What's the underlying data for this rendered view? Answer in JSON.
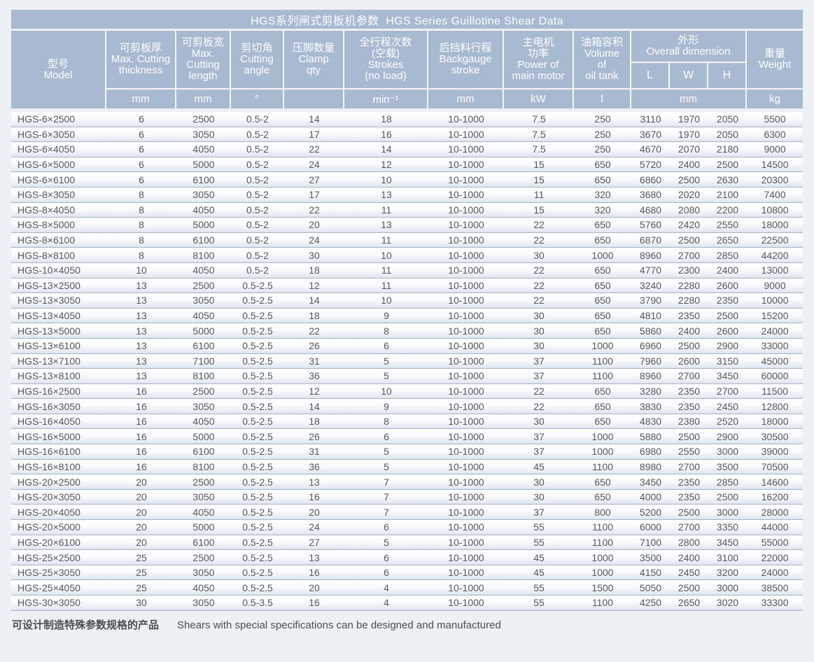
{
  "page": {
    "background": "#edf0f4",
    "accent_blue": "#a8bad1"
  },
  "table": {
    "title": "HGS系列闸式剪板机参数  HGS Series Guillotine Shear Data",
    "header": {
      "model": "型号\nModel",
      "thickness": "可剪板厚\nMax. Cutting\nthickness",
      "length": "可剪板宽\nMax.\nCutting\nlength",
      "angle": "剪切角\nCutting\nangle",
      "clamp": "压脚数量\nClamp\nqty",
      "strokes": "全行程次数\n(空载)\nStrokes\n(no load)",
      "backgauge": "后挡料行程\nBackgauge\nstroke",
      "power": "主电机\n功率\nPower of\nmain motor",
      "volume": "油箱容积\nVolume\nof\noil tank",
      "dimension": "外形\nOverall dimension",
      "dim_l": "L",
      "dim_w": "W",
      "dim_h": "H",
      "weight": "重量\nWeight",
      "units": {
        "thickness": "mm",
        "length": "mm",
        "angle": "°",
        "clamp": "",
        "strokes": "min⁻¹",
        "backgauge": "mm",
        "power": "kW",
        "volume": "l",
        "dimension": "mm",
        "weight": "kg"
      }
    },
    "rows": [
      [
        "HGS-6×2500",
        "6",
        "2500",
        "0.5-2",
        "14",
        "18",
        "10-1000",
        "7.5",
        "250",
        "3110",
        "1970",
        "2050",
        "5500"
      ],
      [
        "HGS-6×3050",
        "6",
        "3050",
        "0.5-2",
        "17",
        "16",
        "10-1000",
        "7.5",
        "250",
        "3670",
        "1970",
        "2050",
        "6300"
      ],
      [
        "HGS-6×4050",
        "6",
        "4050",
        "0.5-2",
        "22",
        "14",
        "10-1000",
        "7.5",
        "250",
        "4670",
        "2070",
        "2180",
        "9000"
      ],
      [
        "HGS-6×5000",
        "6",
        "5000",
        "0.5-2",
        "24",
        "12",
        "10-1000",
        "15",
        "650",
        "5720",
        "2400",
        "2500",
        "14500"
      ],
      [
        "HGS-6×6100",
        "6",
        "6100",
        "0.5-2",
        "27",
        "10",
        "10-1000",
        "15",
        "650",
        "6860",
        "2500",
        "2630",
        "20300"
      ],
      [
        "HGS-8×3050",
        "8",
        "3050",
        "0.5-2",
        "17",
        "13",
        "10-1000",
        "11",
        "320",
        "3680",
        "2020",
        "2100",
        "7400"
      ],
      [
        "HGS-8×4050",
        "8",
        "4050",
        "0.5-2",
        "22",
        "11",
        "10-1000",
        "15",
        "320",
        "4680",
        "2080",
        "2200",
        "10800"
      ],
      [
        "HGS-8×5000",
        "8",
        "5000",
        "0.5-2",
        "20",
        "13",
        "10-1000",
        "22",
        "650",
        "5760",
        "2420",
        "2550",
        "18000"
      ],
      [
        "HGS-8×6100",
        "8",
        "6100",
        "0.5-2",
        "24",
        "11",
        "10-1000",
        "22",
        "650",
        "6870",
        "2500",
        "2650",
        "22500"
      ],
      [
        "HGS-8×8100",
        "8",
        "8100",
        "0.5-2",
        "30",
        "10",
        "10-1000",
        "30",
        "1000",
        "8960",
        "2700",
        "2850",
        "44200"
      ],
      [
        "HGS-10×4050",
        "10",
        "4050",
        "0.5-2",
        "18",
        "11",
        "10-1000",
        "22",
        "650",
        "4770",
        "2300",
        "2400",
        "13000"
      ],
      [
        "HGS-13×2500",
        "13",
        "2500",
        "0.5-2.5",
        "12",
        "11",
        "10-1000",
        "22",
        "650",
        "3240",
        "2280",
        "2600",
        "9000"
      ],
      [
        "HGS-13×3050",
        "13",
        "3050",
        "0.5-2.5",
        "14",
        "10",
        "10-1000",
        "22",
        "650",
        "3790",
        "2280",
        "2350",
        "10000"
      ],
      [
        "HGS-13×4050",
        "13",
        "4050",
        "0.5-2.5",
        "18",
        "9",
        "10-1000",
        "30",
        "650",
        "4810",
        "2350",
        "2500",
        "15200"
      ],
      [
        "HGS-13×5000",
        "13",
        "5000",
        "0.5-2.5",
        "22",
        "8",
        "10-1000",
        "30",
        "650",
        "5860",
        "2400",
        "2600",
        "24000"
      ],
      [
        "HGS-13×6100",
        "13",
        "6100",
        "0.5-2.5",
        "26",
        "6",
        "10-1000",
        "30",
        "1000",
        "6960",
        "2500",
        "2900",
        "33000"
      ],
      [
        "HGS-13×7100",
        "13",
        "7100",
        "0.5-2.5",
        "31",
        "5",
        "10-1000",
        "37",
        "1100",
        "7960",
        "2600",
        "3150",
        "45000"
      ],
      [
        "HGS-13×8100",
        "13",
        "8100",
        "0.5-2.5",
        "36",
        "5",
        "10-1000",
        "37",
        "1100",
        "8960",
        "2700",
        "3450",
        "60000"
      ],
      [
        "HGS-16×2500",
        "16",
        "2500",
        "0.5-2.5",
        "12",
        "10",
        "10-1000",
        "22",
        "650",
        "3280",
        "2350",
        "2700",
        "11500"
      ],
      [
        "HGS-16×3050",
        "16",
        "3050",
        "0.5-2.5",
        "14",
        "9",
        "10-1000",
        "22",
        "650",
        "3830",
        "2350",
        "2450",
        "12800"
      ],
      [
        "HGS-16×4050",
        "16",
        "4050",
        "0.5-2.5",
        "18",
        "8",
        "10-1000",
        "30",
        "650",
        "4830",
        "2380",
        "2520",
        "18000"
      ],
      [
        "HGS-16×5000",
        "16",
        "5000",
        "0.5-2.5",
        "26",
        "6",
        "10-1000",
        "37",
        "1000",
        "5880",
        "2500",
        "2900",
        "30500"
      ],
      [
        "HGS-16×6100",
        "16",
        "6100",
        "0.5-2.5",
        "31",
        "5",
        "10-1000",
        "37",
        "1000",
        "6980",
        "2550",
        "3000",
        "39000"
      ],
      [
        "HGS-16×8100",
        "16",
        "8100",
        "0.5-2.5",
        "36",
        "5",
        "10-1000",
        "45",
        "1100",
        "8980",
        "2700",
        "3500",
        "70500"
      ],
      [
        "HGS-20×2500",
        "20",
        "2500",
        "0.5-2.5",
        "13",
        "7",
        "10-1000",
        "30",
        "650",
        "3450",
        "2350",
        "2850",
        "14600"
      ],
      [
        "HGS-20×3050",
        "20",
        "3050",
        "0.5-2.5",
        "16",
        "7",
        "10-1000",
        "30",
        "650",
        "4000",
        "2350",
        "2500",
        "16200"
      ],
      [
        "HGS-20×4050",
        "20",
        "4050",
        "0.5-2.5",
        "20",
        "7",
        "10-1000",
        "37",
        "800",
        "5200",
        "2500",
        "3000",
        "28000"
      ],
      [
        "HGS-20×5000",
        "20",
        "5000",
        "0.5-2.5",
        "24",
        "6",
        "10-1000",
        "55",
        "1100",
        "6000",
        "2700",
        "3350",
        "44000"
      ],
      [
        "HGS-20×6100",
        "20",
        "6100",
        "0.5-2.5",
        "27",
        "5",
        "10-1000",
        "55",
        "1100",
        "7100",
        "2800",
        "3450",
        "55000"
      ],
      [
        "HGS-25×2500",
        "25",
        "2500",
        "0.5-2.5",
        "13",
        "6",
        "10-1000",
        "45",
        "1000",
        "3500",
        "2400",
        "3100",
        "22000"
      ],
      [
        "HGS-25×3050",
        "25",
        "3050",
        "0.5-2.5",
        "16",
        "6",
        "10-1000",
        "45",
        "1000",
        "4150",
        "2450",
        "3200",
        "24000"
      ],
      [
        "HGS-25×4050",
        "25",
        "4050",
        "0.5-2.5",
        "20",
        "4",
        "10-1000",
        "55",
        "1500",
        "5050",
        "2500",
        "3000",
        "38500"
      ],
      [
        "HGS-30×3050",
        "30",
        "3050",
        "0.5-3.5",
        "16",
        "4",
        "10-1000",
        "55",
        "1100",
        "4250",
        "2650",
        "3020",
        "33300"
      ]
    ]
  },
  "footer": {
    "note_zh": "可设计制造特殊参数规格的产品",
    "note_en": "Shears with special specifications can be designed and manufactured"
  }
}
